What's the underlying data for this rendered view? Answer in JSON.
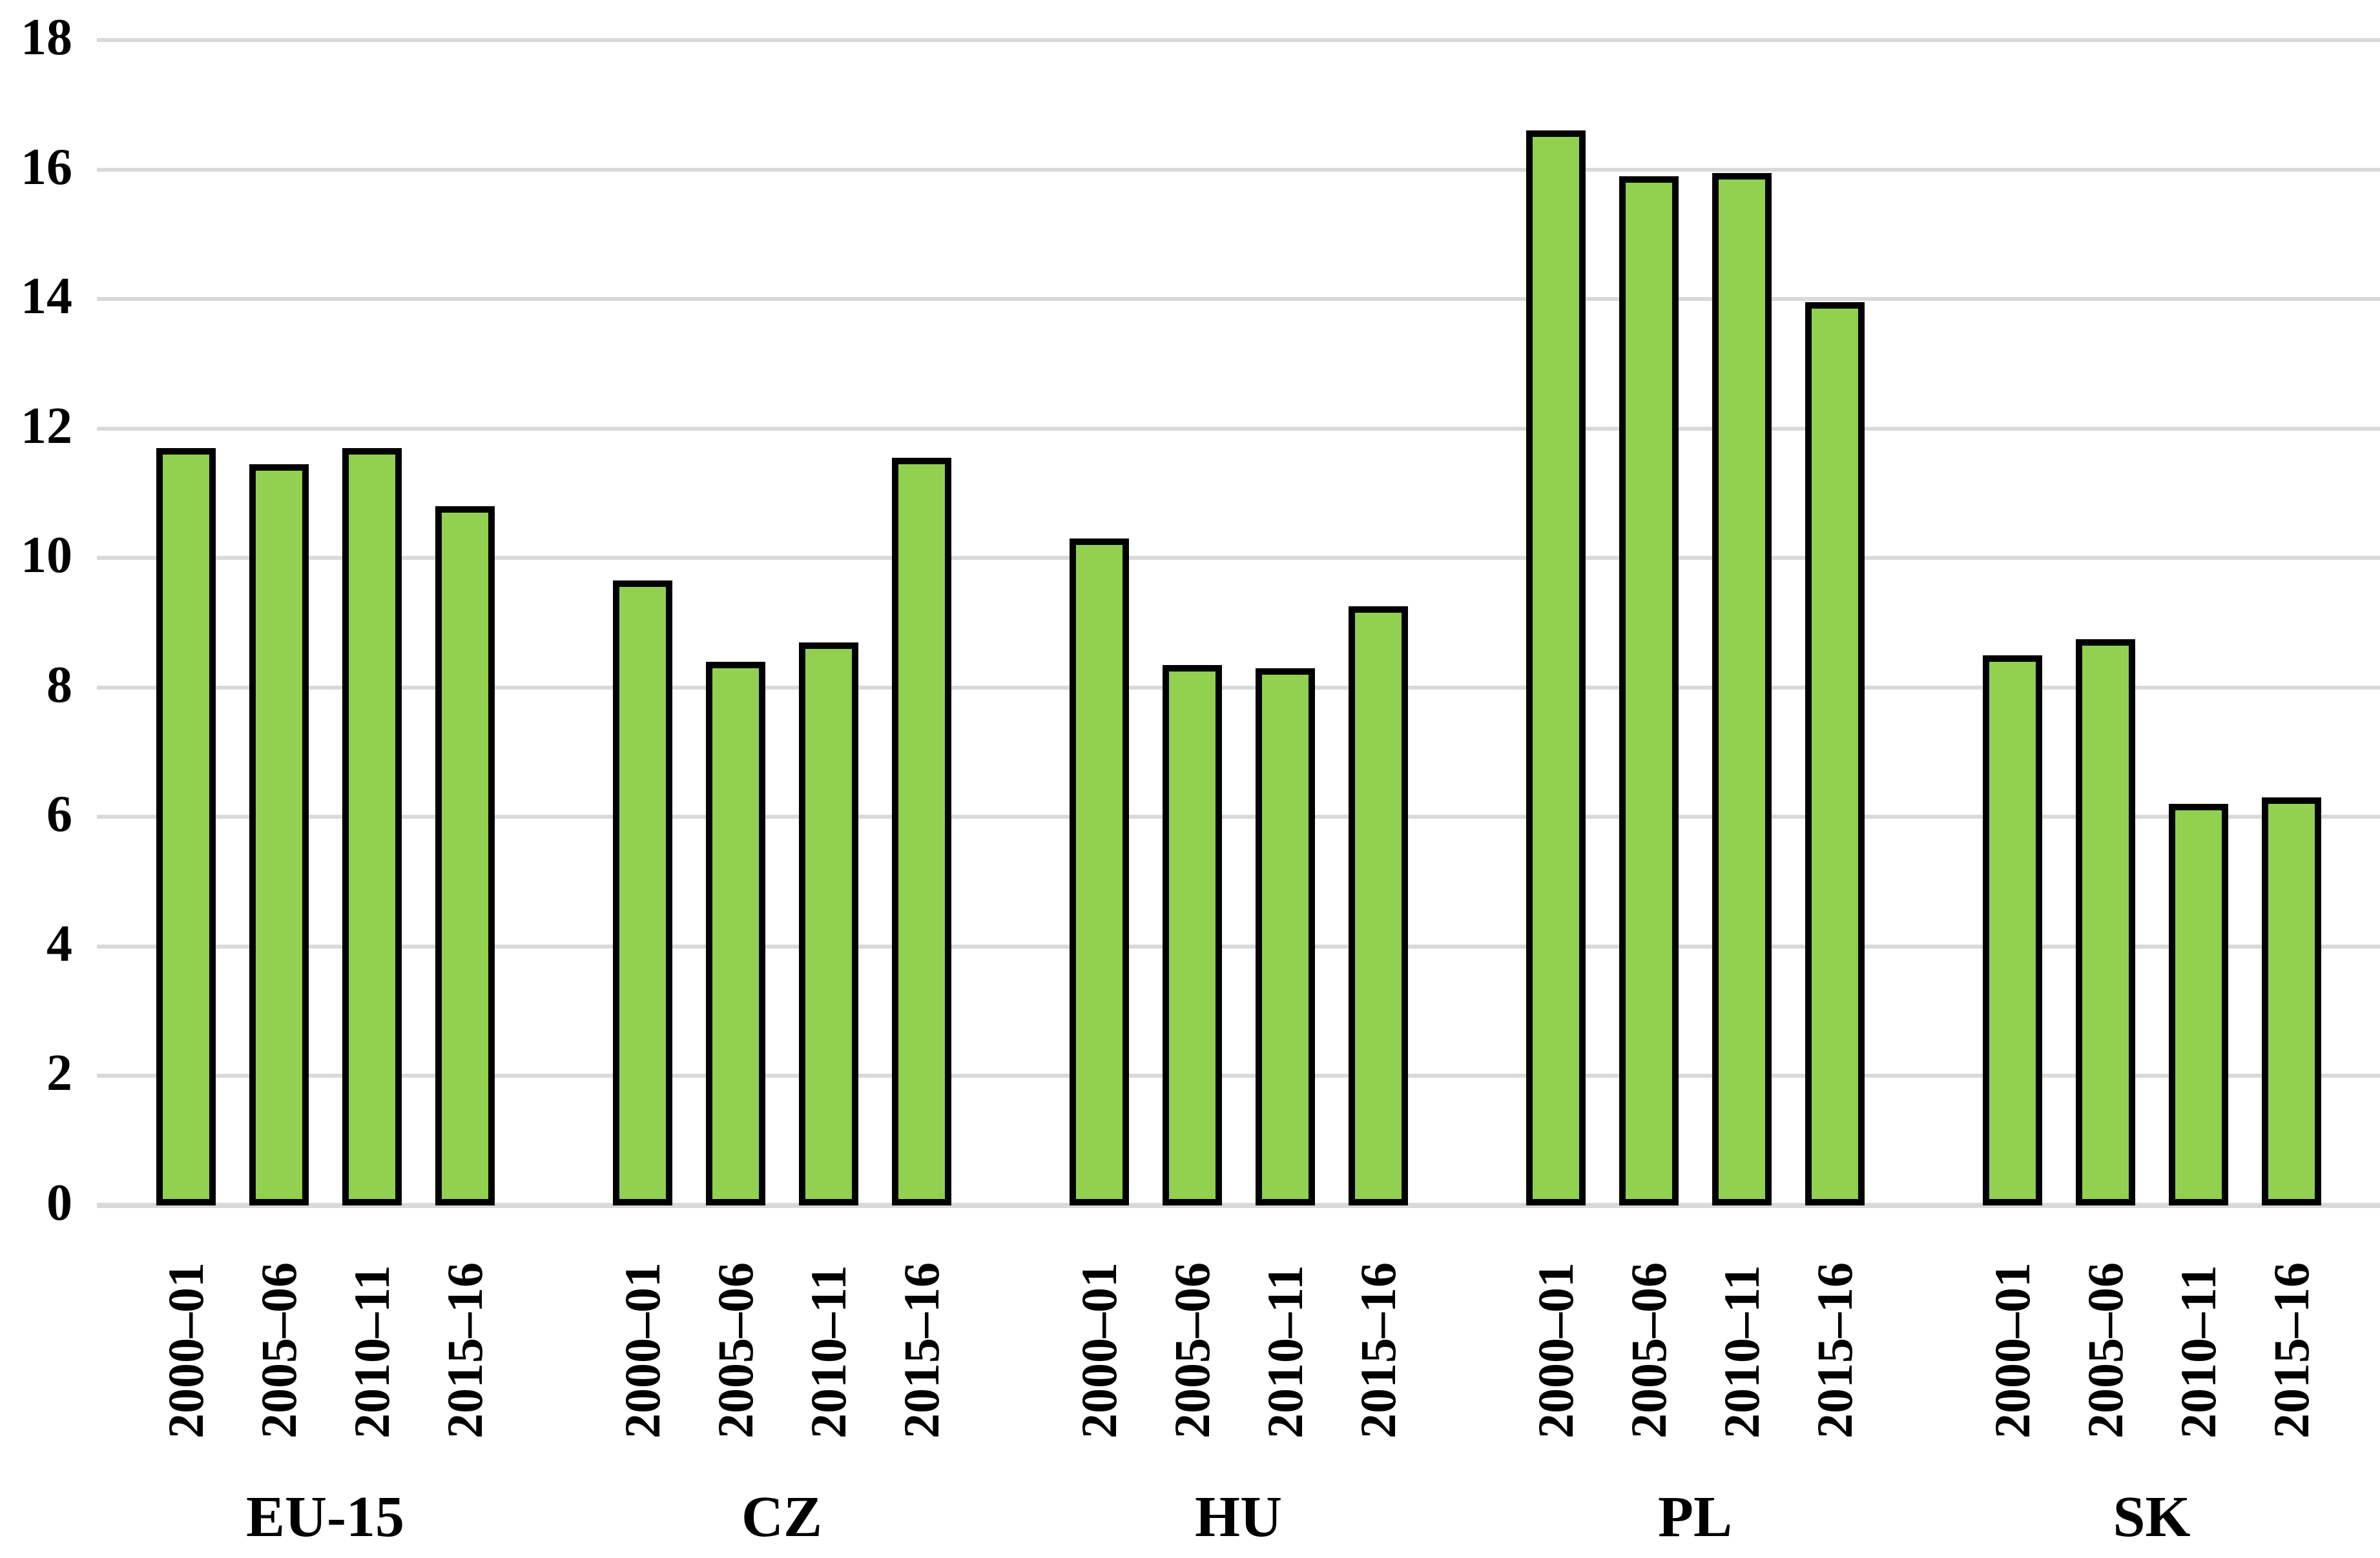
{
  "chart_data": {
    "type": "bar",
    "title": "",
    "xlabel": "",
    "ylabel": "",
    "groups": [
      "EU-15",
      "CZ",
      "HU",
      "PL",
      "SK"
    ],
    "categories_per_group": [
      "2000–01",
      "2005–06",
      "2010–11",
      "2015–16"
    ],
    "series": [
      {
        "name": "EU-15",
        "values": [
          11.7,
          11.45,
          11.7,
          10.8
        ]
      },
      {
        "name": "CZ",
        "values": [
          9.65,
          8.4,
          8.7,
          11.55
        ]
      },
      {
        "name": "HU",
        "values": [
          10.3,
          8.35,
          8.3,
          9.25
        ]
      },
      {
        "name": "PL",
        "values": [
          16.6,
          15.9,
          15.95,
          13.95
        ]
      },
      {
        "name": "SK",
        "values": [
          8.5,
          8.75,
          6.2,
          6.3
        ]
      }
    ],
    "ylim": [
      0,
      18
    ],
    "y_ticks": [
      0,
      2,
      4,
      6,
      8,
      10,
      12,
      14,
      16,
      18
    ],
    "grid": true,
    "legend_position": "none",
    "colors": {
      "bar_fill": "#92D050",
      "bar_border": "#000000",
      "gridline": "#D9D9D9",
      "text": "#000000",
      "background": "#FFFFFF"
    }
  }
}
